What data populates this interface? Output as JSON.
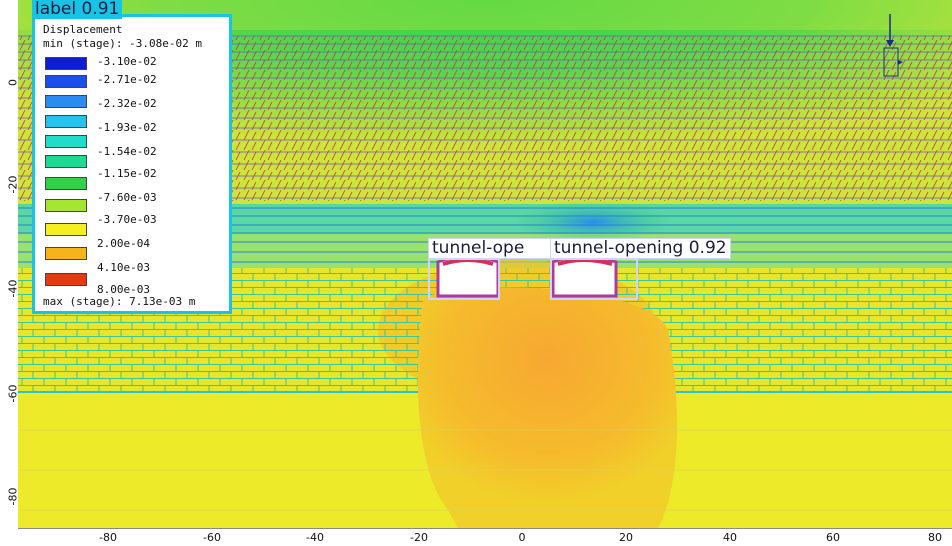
{
  "legend": {
    "title": "Displacement",
    "min_text": "min (stage): -3.08e-02 m",
    "max_text": "max (stage): 7.13e-03 m",
    "entries": [
      {
        "label": "-3.10e-02",
        "color": "#0a1ed2"
      },
      {
        "label": "-2.71e-02",
        "color": "#1a50e8"
      },
      {
        "label": "-2.32e-02",
        "color": "#2a8cf0"
      },
      {
        "label": "-1.93e-02",
        "color": "#28c0ee"
      },
      {
        "label": "-1.54e-02",
        "color": "#22dccb"
      },
      {
        "label": "-1.15e-02",
        "color": "#20d890"
      },
      {
        "label": "-7.60e-03",
        "color": "#33d04a"
      },
      {
        "label": "-3.70e-03",
        "color": "#a6e632"
      },
      {
        "label": "2.00e-04",
        "color": "#f5ef22"
      },
      {
        "label": "4.10e-03",
        "color": "#f5b51a"
      },
      {
        "label": "8.00e-03",
        "color": "#e23b12"
      }
    ]
  },
  "detections": {
    "label_box": "label 0.91",
    "tunnel_left": "tunnel-ope",
    "tunnel_right": "tunnel-opening 0.92"
  },
  "axes": {
    "y_ticks": [
      "0",
      "-20",
      "-40",
      "-60",
      "-80"
    ],
    "x_ticks": [
      "-80",
      "-60",
      "-40",
      "-20",
      "0",
      "20",
      "40",
      "60",
      "80"
    ]
  },
  "colors": {
    "background_contour": "#e6f02a",
    "upper_layer": "#3ad67a",
    "joint_lines": "#d2374f",
    "legend_border": "#17c4e6"
  }
}
